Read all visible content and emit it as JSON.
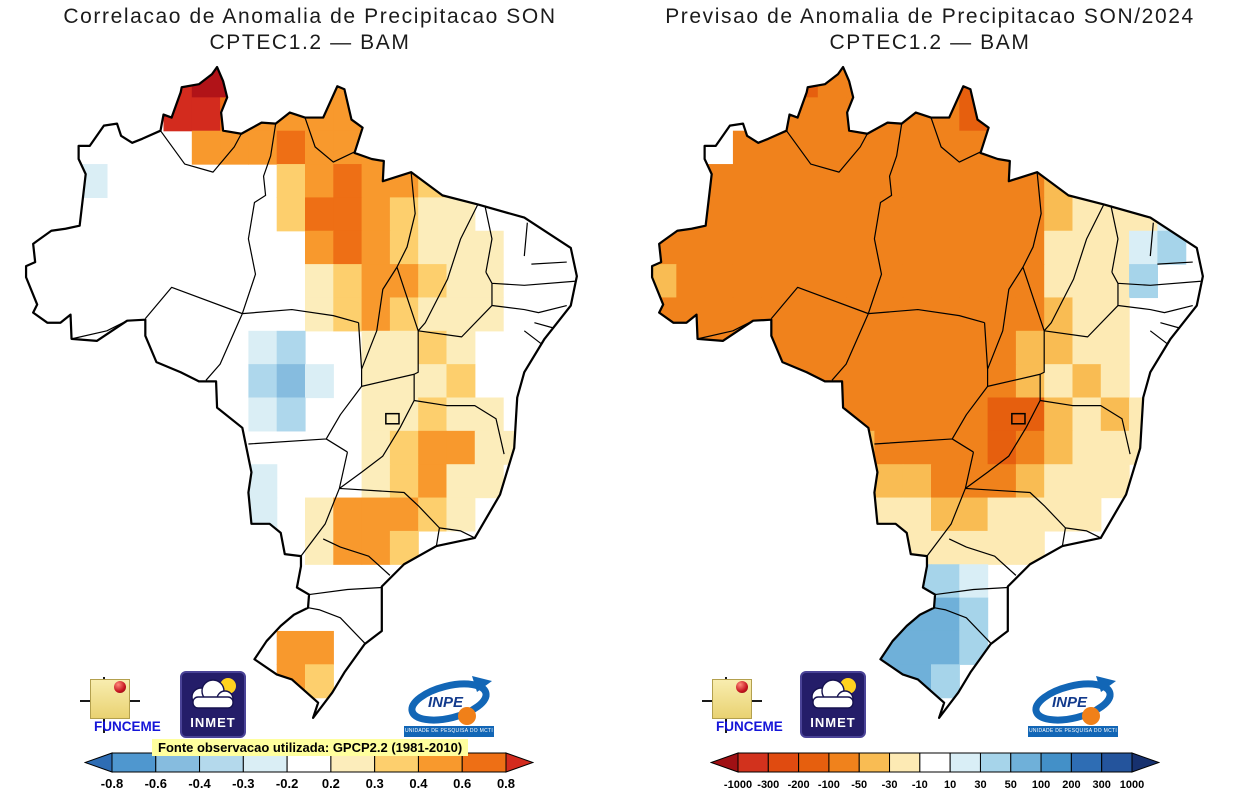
{
  "page": {
    "background": "#ffffff"
  },
  "logos": {
    "funceme": "FUNCEME",
    "inmet": "INMET",
    "inpe": "INPE",
    "inpe_tagline": "UNIDADE DE PESQUISA DO MCTI"
  },
  "chart_data": [
    {
      "type": "heatmap",
      "region": "Brazil",
      "title_line1": "Correlacao de Anomalia de Precipitacao SON",
      "title_line2": "CPTEC1.2 — BAM",
      "source_note": "Fonte observacao utilizada: GPCP2.2 (1981-2010)",
      "legend_values": [
        "-0.8",
        "-0.6",
        "-0.4",
        "-0.3",
        "-0.2",
        "0.2",
        "0.3",
        "0.4",
        "0.6",
        "0.8"
      ],
      "legend_colors": [
        "#2e6db4",
        "#4f97cf",
        "#86bcdf",
        "#b4d9ec",
        "#daeef5",
        "#ffffff",
        "#fcedbb",
        "#fdcf6d",
        "#f8992d",
        "#ee6f15",
        "#d32b1e"
      ],
      "label_size": 13,
      "palette": {
        ".": "#ffffff",
        "a": "#fcedbb",
        "b": "#fdcf6d",
        "c": "#f8992d",
        "d": "#ee6f15",
        "e": "#d32b1e",
        "f": "#b11318",
        "u": "#daeef5",
        "v": "#aed7ec",
        "w": "#86bcdf"
      },
      "grid": [
        ".....eff...c........",
        ".....eedcccccb......",
        "......cccdcccb......",
        "..u......bcdccba....",
        ".........bddcbaa....",
        "..........cdcbaaa...",
        "..........abccbaa...",
        "..........abcbaaa...",
        "........uv..aaba....",
        "........vwu.aaab....",
        "........uv..aabaa...",
        "............abccaa..",
        "........u...abcaa...",
        "........u.acccba....",
        "..........accb......",
        "....................",
        "....................",
        ".........cc.........",
        ".........cb.........",
        "...................."
      ]
    },
    {
      "type": "heatmap",
      "region": "Brazil",
      "title_line1": "Previsao de Anomalia de Precipitacao SON/2024",
      "title_line2": "CPTEC1.2 — BAM",
      "legend_values": [
        "-1000",
        "-300",
        "-200",
        "-100",
        "-50",
        "-30",
        "-10",
        "10",
        "30",
        "50",
        "100",
        "200",
        "300",
        "1000"
      ],
      "legend_colors": [
        "#a01014",
        "#d2321d",
        "#e04b10",
        "#e65f0e",
        "#f0821c",
        "#f9bc53",
        "#fdeab4",
        "#ffffff",
        "#d9eef6",
        "#a6d4ea",
        "#6fb0d9",
        "#4390c8",
        "#2e6db4",
        "#24549c",
        "#17316e"
      ],
      "label_size": 11,
      "palette": {
        ".": "#ffffff",
        "a": "#fdeab4",
        "b": "#f9bc53",
        "c": "#f0821c",
        "d": "#e65f0e",
        "e": "#d2321d",
        "u": "#d9eef6",
        "v": "#a6d4ea",
        "w": "#6fb0d9",
        "x": "#4390c8",
        "y": "#2e6db4"
      },
      "grid": [
        ".....dcc..cd........",
        "....cccccccdcb......",
        "...ccccccccccca.....",
        "..ccccccccccccbaa...",
        ".cccccccccccccbaaau.",
        "ccccccccccccccaaauv.",
        "bcccccccccccccaaav..",
        "ccccccccccccccbaa...",
        "cccccccccccccbbaa...",
        "cccccccccccccbaba...",
        "ccccccccccccddbaba..",
        "ccccccbbccccdcbaaa..",
        "....bbbbbbcccbaaa...",
        "....aaaaaabbaaaa....",
        ".......aaaaaaa......",
        ".......avvvu........",
        ".......vwwwv........",
        ".......wwwwv........",
        "........wwv.........",
        "........vv.........."
      ]
    }
  ]
}
